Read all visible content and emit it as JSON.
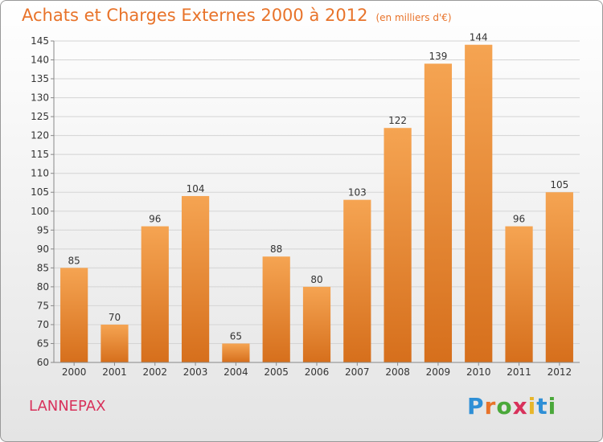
{
  "chart_data": {
    "type": "bar",
    "title": "Achats et Charges Externes 2000 à 2012",
    "subtitle": "(en milliers d'€)",
    "categories": [
      "2000",
      "2001",
      "2002",
      "2003",
      "2004",
      "2005",
      "2006",
      "2007",
      "2008",
      "2009",
      "2010",
      "2011",
      "2012"
    ],
    "values": [
      85,
      70,
      96,
      104,
      65,
      88,
      80,
      103,
      122,
      139,
      144,
      96,
      105
    ],
    "ylim": [
      60,
      145
    ],
    "yticks": [
      60,
      65,
      70,
      75,
      80,
      85,
      90,
      95,
      100,
      105,
      110,
      115,
      120,
      125,
      130,
      135,
      140,
      145
    ],
    "grid": true,
    "bar_color_top": "#f5a452",
    "bar_color_bottom": "#d66f1c"
  },
  "footer": {
    "commune": "LANNEPAX",
    "logo_text": "Proxiti"
  },
  "colors": {
    "title": "#e8732a",
    "commune": "#d8315b"
  }
}
